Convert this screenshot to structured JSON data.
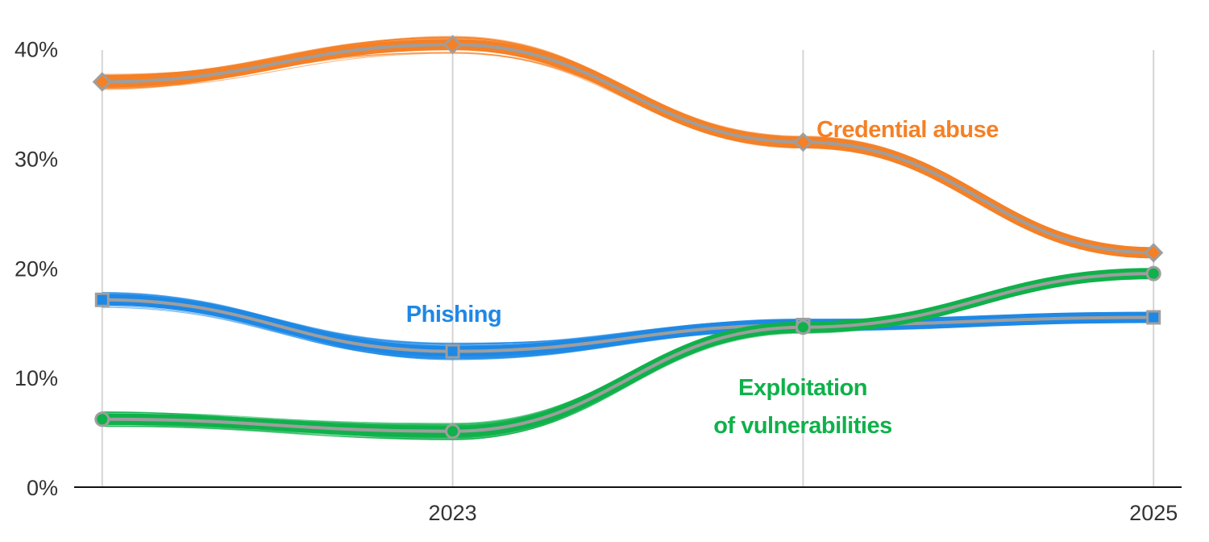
{
  "chart_data": {
    "type": "line",
    "x": [
      2022,
      2023,
      2024,
      2025
    ],
    "x_tick_labels": [
      {
        "x": 2023,
        "label": "2023"
      },
      {
        "x": 2025,
        "label": "2025"
      }
    ],
    "y_tick_labels": [
      {
        "y": 0,
        "label": "0%"
      },
      {
        "y": 10,
        "label": "10%"
      },
      {
        "y": 20,
        "label": "20%"
      },
      {
        "y": 30,
        "label": "30%"
      },
      {
        "y": 40,
        "label": "40%"
      }
    ],
    "xlim": [
      2021.92,
      2025.08
    ],
    "ylim": [
      0,
      43
    ],
    "grid": "vertical",
    "series": [
      {
        "name": "Credential abuse",
        "color": "#f58025",
        "marker": "diamond",
        "values": [
          37,
          40.4,
          31.5,
          21.4
        ]
      },
      {
        "name": "Phishing",
        "color": "#1e88e5",
        "marker": "square",
        "values": [
          17.1,
          12.4,
          14.8,
          15.5
        ],
        "label_lines": [
          "Phishing"
        ]
      },
      {
        "name": "Exploitation of vulnerabilities",
        "color": "#0fb14a",
        "marker": "circle",
        "values": [
          6.2,
          5.1,
          14.6,
          19.5
        ],
        "label_lines": [
          "Exploitation",
          "of vulnerabilities"
        ]
      }
    ],
    "marker_stroke_color": "#9e9e9e"
  }
}
